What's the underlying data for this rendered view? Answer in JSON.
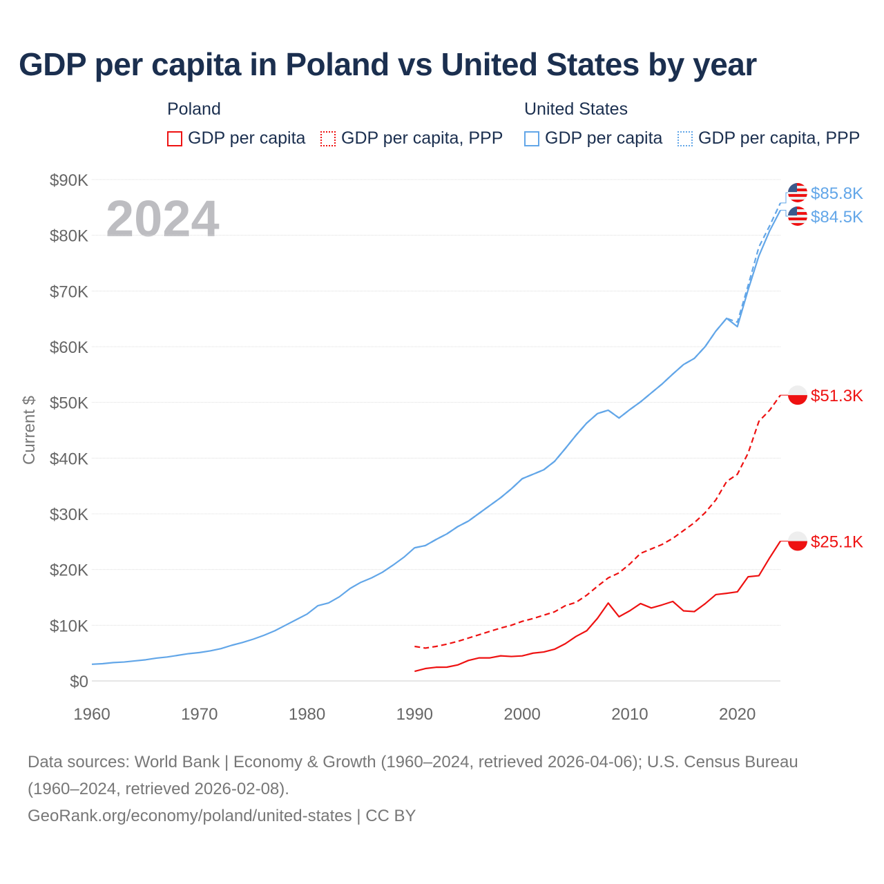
{
  "title": "GDP per capita in Poland vs United States by year",
  "legend": {
    "groups": [
      {
        "name": "Poland",
        "items": [
          {
            "label": "GDP per capita",
            "style": "solid"
          },
          {
            "label": "GDP per capita, PPP",
            "style": "dotted"
          }
        ],
        "color": "#ee1111"
      },
      {
        "name": "United States",
        "items": [
          {
            "label": "GDP per capita",
            "style": "solid"
          },
          {
            "label": "GDP per capita, PPP",
            "style": "dotted"
          }
        ],
        "color": "#62a6e8"
      }
    ]
  },
  "watermark_year": "2024",
  "footer": {
    "line1": "Data sources: World Bank | Economy & Growth (1960–2024, retrieved 2026-04-06); U.S. Census Bureau",
    "line2": "(1960–2024, retrieved 2026-02-08).",
    "line3": "GeoRank.org/economy/poland/united-states | CC BY"
  },
  "chart_data": {
    "type": "line",
    "title": "GDP per capita in Poland vs United States by year",
    "xlabel": "",
    "ylabel": "Current $",
    "xlim": [
      1960,
      2024
    ],
    "ylim": [
      0,
      90000
    ],
    "x_ticks": [
      1960,
      1970,
      1980,
      1990,
      2000,
      2010,
      2020
    ],
    "x_tick_labels": [
      "1960",
      "1970",
      "1980",
      "1990",
      "2000",
      "2010",
      "2020"
    ],
    "y_ticks": [
      0,
      10000,
      20000,
      30000,
      40000,
      50000,
      60000,
      70000,
      80000,
      90000
    ],
    "y_tick_labels": [
      "$0",
      "$10K",
      "$20K",
      "$30K",
      "$40K",
      "$50K",
      "$60K",
      "$70K",
      "$80K",
      "$90K"
    ],
    "grid": true,
    "legend_position": "top",
    "series": [
      {
        "name": "Poland GDP per capita",
        "color": "#ee1111",
        "dash": "solid",
        "end_label": "$25.1K",
        "flag": "poland",
        "start": 1990,
        "values": [
          1730,
          2230,
          2460,
          2480,
          2870,
          3680,
          4140,
          4140,
          4510,
          4390,
          4500,
          4990,
          5200,
          5690,
          6680,
          7990,
          9020,
          11250,
          13990,
          11530,
          12600,
          13890,
          13100,
          13650,
          14270,
          12580,
          12450,
          13860,
          15500,
          15730,
          16000,
          18700,
          18900,
          22100,
          25100
        ]
      },
      {
        "name": "Poland GDP per capita, PPP",
        "color": "#ee1111",
        "dash": "dashed",
        "end_label": "$51.3K",
        "flag": "poland",
        "start": 1990,
        "values": [
          6200,
          5900,
          6200,
          6600,
          7100,
          7700,
          8300,
          8900,
          9500,
          10000,
          10700,
          11200,
          11800,
          12400,
          13500,
          14100,
          15400,
          17000,
          18500,
          19400,
          21000,
          22900,
          23700,
          24500,
          25600,
          27000,
          28400,
          30200,
          32500,
          35800,
          37100,
          40900,
          46600,
          48600,
          51300
        ]
      },
      {
        "name": "United States GDP per capita",
        "color": "#62a6e8",
        "dash": "solid",
        "end_label": "$84.5K",
        "flag": "usa",
        "start": 1960,
        "values": [
          3000,
          3100,
          3300,
          3400,
          3600,
          3800,
          4100,
          4300,
          4600,
          4900,
          5100,
          5400,
          5800,
          6400,
          6900,
          7500,
          8200,
          9000,
          10000,
          11000,
          12000,
          13500,
          14000,
          15100,
          16600,
          17700,
          18500,
          19500,
          20800,
          22200,
          23900,
          24300,
          25400,
          26400,
          27700,
          28700,
          30100,
          31500,
          32900,
          34500,
          36300,
          37100,
          37900,
          39400,
          41700,
          44100,
          46300,
          48000,
          48600,
          47200,
          48700,
          50100,
          51700,
          53300,
          55100,
          56800,
          57900,
          60000,
          62800,
          65100,
          63600,
          70200,
          76300,
          80800,
          84500
        ]
      },
      {
        "name": "United States GDP per capita, PPP",
        "color": "#62a6e8",
        "dash": "dashed",
        "end_label": "$85.8K",
        "flag": "usa",
        "start": 1990,
        "values": [
          23900,
          24300,
          25400,
          26400,
          27700,
          28700,
          30100,
          31500,
          32900,
          34500,
          36300,
          37100,
          37900,
          39400,
          41700,
          44100,
          46300,
          48000,
          48600,
          47200,
          48700,
          50100,
          51700,
          53300,
          55100,
          56800,
          57900,
          60000,
          62800,
          65100,
          64400,
          71000,
          77900,
          81700,
          85800
        ]
      }
    ]
  }
}
